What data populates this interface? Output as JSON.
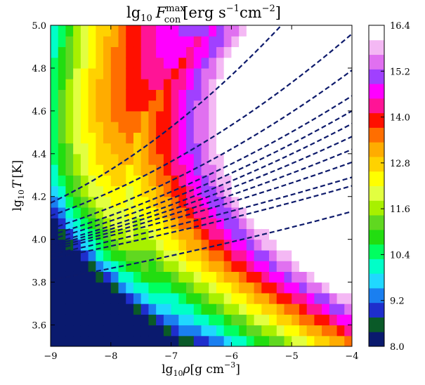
{
  "chart_data": {
    "type": "heatmap",
    "title": {
      "prefix": "lg",
      "prefix_sub": "10",
      "var": "F",
      "var_sub": "con",
      "var_sup": "max",
      "units_open": "[erg s",
      "units_sup1": "−1",
      "units_mid": "cm",
      "units_sup2": "−2",
      "units_close": "]"
    },
    "xlabel": {
      "prefix": "lg",
      "prefix_sub": "10",
      "var": "ρ",
      "units_open": "[g  cm",
      "units_sup": "−3",
      "units_close": "]"
    },
    "ylabel": {
      "prefix": "lg",
      "prefix_sub": "10",
      "var": "T",
      "units": "[K]"
    },
    "xlim": [
      -9,
      -4
    ],
    "ylim": [
      3.5,
      5.0
    ],
    "x_ticks": [
      -9,
      -8,
      -7,
      -6,
      -5,
      -4
    ],
    "x_tick_labels": [
      "−9",
      "−8",
      "−7",
      "−6",
      "−5",
      "−4"
    ],
    "y_ticks": [
      3.6,
      3.8,
      4.0,
      4.2,
      4.4,
      4.6,
      4.8,
      5.0
    ],
    "y_tick_labels": [
      "3.6",
      "3.8",
      "4.0",
      "4.2",
      "4.4",
      "4.6",
      "4.8",
      "5.0"
    ],
    "colorbar": {
      "min": 8.0,
      "max": 16.4,
      "step": 0.6,
      "tick_labels": [
        "8.0",
        "9.2",
        "10.4",
        "11.6",
        "12.8",
        "14.0",
        "15.2",
        "16.4"
      ],
      "colors": [
        "#0a1a6e",
        "#0a5a28",
        "#1e2ecc",
        "#1a7ff0",
        "#20d8ff",
        "#00ffc8",
        "#00ff60",
        "#22dd10",
        "#60d820",
        "#a8f000",
        "#e2ff40",
        "#ffff00",
        "#ffd200",
        "#ffac00",
        "#ff6e00",
        "#ff1000",
        "#ff1496",
        "#ff00ff",
        "#a040ff",
        "#e070f0",
        "#f4b8f4",
        "#ffffff"
      ]
    },
    "grid_resolution": [
      40,
      30
    ],
    "field_model": {
      "description_free": true,
      "ridge_c": -7.7,
      "ridge_a": -0.3,
      "ridge_p": 1.1,
      "ridge_q": 0.25,
      "base": 7.9,
      "slope_rho": 2.1,
      "slope_T": 3.3,
      "decay": 1.6
    },
    "contour_lines": {
      "color": "#0d1a6b",
      "style": "dashed",
      "lines": [
        {
          "y_at_xmin": 3.81,
          "y_at_xmax": 4.07,
          "curv": 0.01
        },
        {
          "y_at_xmin": 3.91,
          "y_at_xmax": 4.19,
          "curv": 0.01
        },
        {
          "y_at_xmin": 3.93,
          "y_at_xmax": 4.23,
          "curv": 0.01
        },
        {
          "y_at_xmin": 3.95,
          "y_at_xmax": 4.27,
          "curv": 0.015
        },
        {
          "y_at_xmin": 3.96,
          "y_at_xmax": 4.3,
          "curv": 0.02
        },
        {
          "y_at_xmin": 3.97,
          "y_at_xmax": 4.33,
          "curv": 0.025
        },
        {
          "y_at_xmin": 3.98,
          "y_at_xmax": 4.36,
          "curv": 0.03
        },
        {
          "y_at_xmin": 4.0,
          "y_at_xmax": 4.39,
          "curv": 0.035
        },
        {
          "y_at_xmin": 4.02,
          "y_at_xmax": 4.43,
          "curv": 0.04
        },
        {
          "y_at_xmin": 4.05,
          "y_at_xmax": 4.49,
          "curv": 0.05
        },
        {
          "y_at_xmin": 4.11,
          "y_at_xmax": 4.6,
          "curv": 0.06
        },
        {
          "y_at_xmin": 4.17,
          "y_at_xmax": 4.84,
          "curv": 0.09
        }
      ]
    }
  }
}
